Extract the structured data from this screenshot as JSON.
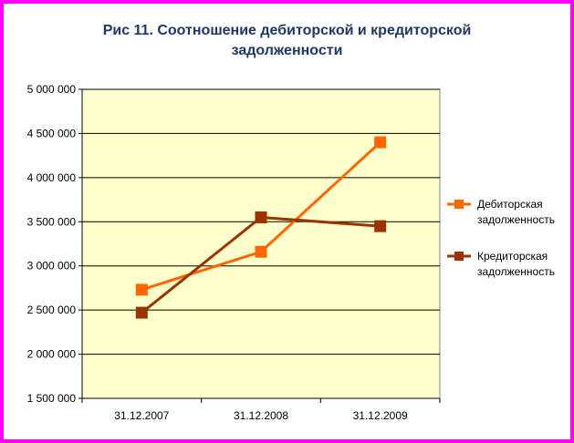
{
  "chart_data": {
    "type": "line",
    "title_line1": "Рис 11. Соотношение дебиторской и кредиторской",
    "title_line2": "задолженности",
    "categories": [
      "31.12.2007",
      "31.12.2008",
      "31.12.2009"
    ],
    "series": [
      {
        "name_line1": "Дебиторская",
        "name_line2": "задолженность",
        "values": [
          2730000,
          3160000,
          4400000
        ],
        "color": "#ff6600"
      },
      {
        "name_line1": "Кредиторская",
        "name_line2": "задолженность",
        "values": [
          2470000,
          3550000,
          3450000
        ],
        "color": "#993300"
      }
    ],
    "yticks": [
      "5 000 000",
      "4 500 000",
      "4 000 000",
      "3 500 000",
      "3 000 000",
      "2 500 000",
      "2 000 000",
      "1 500 000"
    ],
    "ylim": [
      1500000,
      5000000
    ],
    "ystep": 500000,
    "grid": true,
    "legend_position": "right",
    "plot_background": "#ffffcc",
    "frame_color": "#ff00ff",
    "title_color": "#1f3864"
  }
}
